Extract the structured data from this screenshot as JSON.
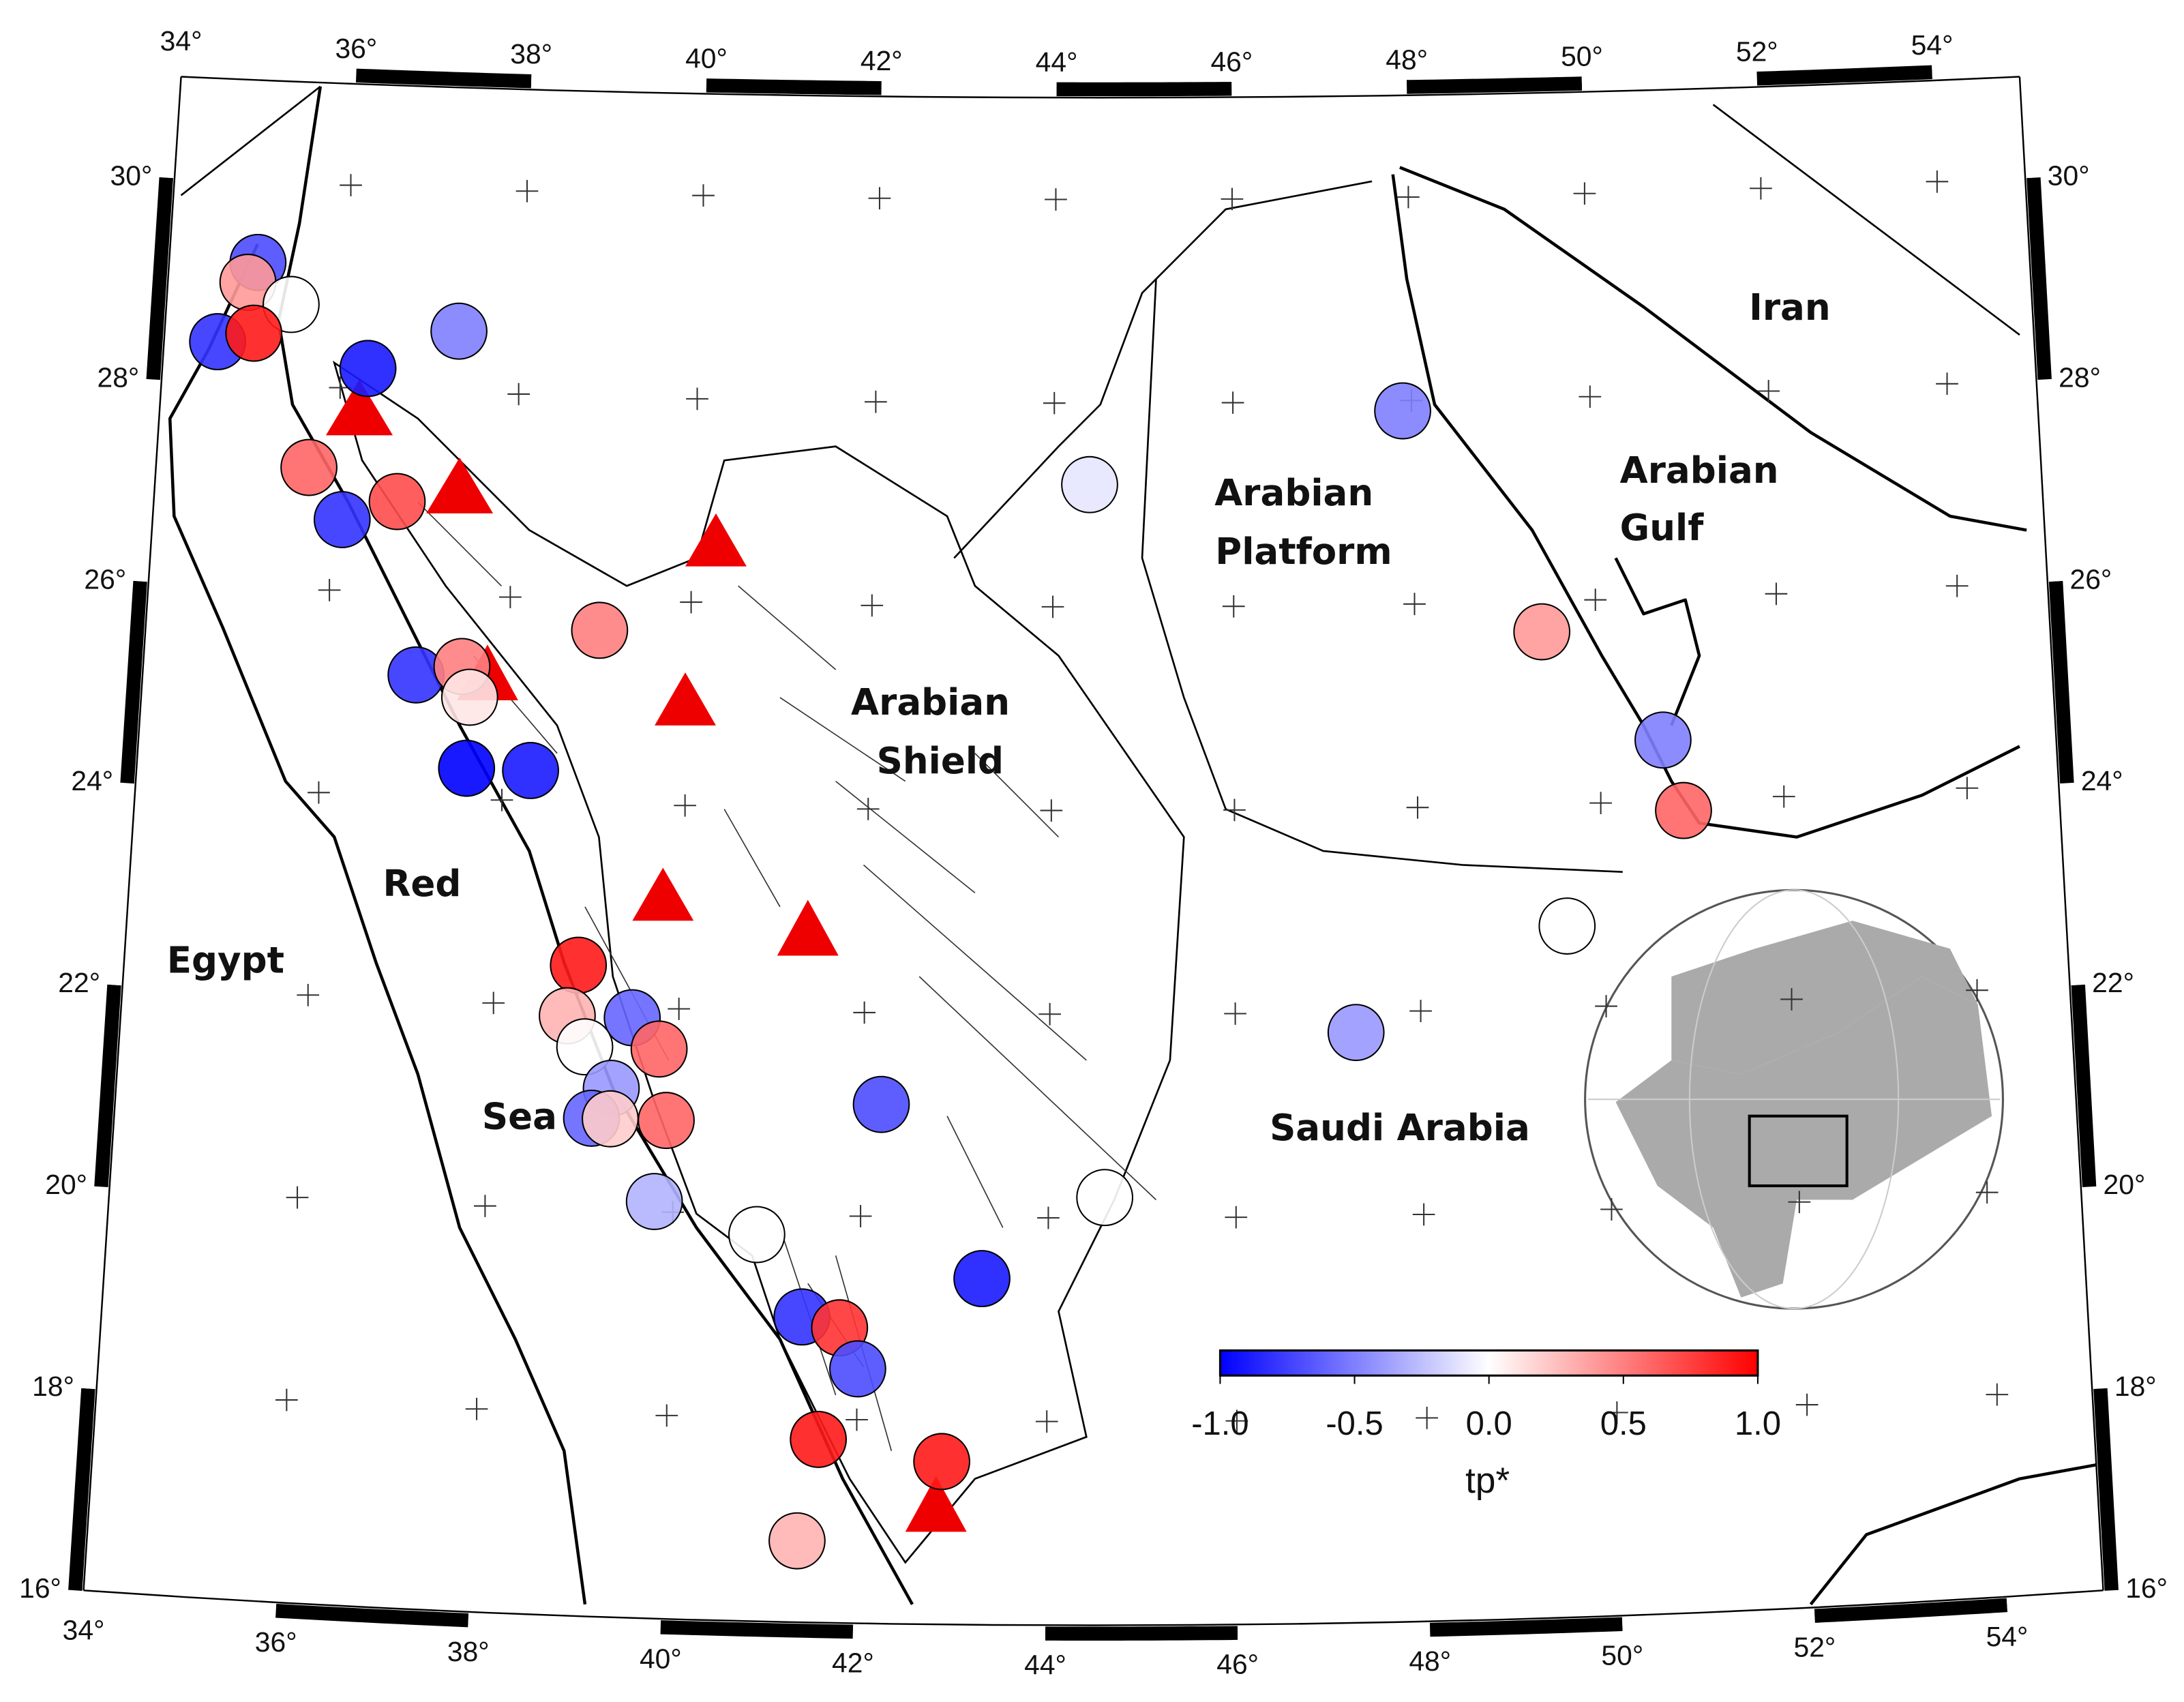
{
  "map": {
    "lon_lim": [
      34,
      55
    ],
    "lat_lim": [
      16,
      31
    ],
    "lon_ticks": [
      {
        "value": 34,
        "label": "34°"
      },
      {
        "value": 36,
        "label": "36°"
      },
      {
        "value": 38,
        "label": "38°"
      },
      {
        "value": 40,
        "label": "40°"
      },
      {
        "value": 42,
        "label": "42°"
      },
      {
        "value": 44,
        "label": "44°"
      },
      {
        "value": 46,
        "label": "46°"
      },
      {
        "value": 48,
        "label": "48°"
      },
      {
        "value": 50,
        "label": "50°"
      },
      {
        "value": 52,
        "label": "52°"
      },
      {
        "value": 54,
        "label": "54°"
      }
    ],
    "lat_ticks": [
      {
        "value": 16,
        "label": "16°"
      },
      {
        "value": 18,
        "label": "18°"
      },
      {
        "value": 20,
        "label": "20°"
      },
      {
        "value": 22,
        "label": "22°"
      },
      {
        "value": 24,
        "label": "24°"
      },
      {
        "value": 26,
        "label": "26°"
      },
      {
        "value": 28,
        "label": "28°"
      },
      {
        "value": 30,
        "label": "30°"
      }
    ]
  },
  "places": [
    "Egypt",
    "Red",
    "Sea",
    "Arabian",
    "Shield",
    "Arabian",
    "Platform",
    "Arabian",
    "Gulf",
    "Iran",
    "Saudi Arabia"
  ],
  "colorbar": {
    "label": "tp*",
    "vlim": [
      -1,
      1
    ],
    "ticks": [
      {
        "value": -1,
        "label": "-1.0"
      },
      {
        "value": -0.5,
        "label": "-0.5"
      },
      {
        "value": 0,
        "label": "0.0"
      },
      {
        "value": 0.5,
        "label": "0.5"
      },
      {
        "value": 1,
        "label": "1.0"
      }
    ]
  },
  "stations": [
    {
      "lon": 35.0,
      "lat": 29.2,
      "tp": -0.7
    },
    {
      "lon": 34.9,
      "lat": 29.0,
      "tp": 0.4
    },
    {
      "lon": 35.4,
      "lat": 28.8,
      "tp": 0.0
    },
    {
      "lon": 34.6,
      "lat": 28.4,
      "tp": -0.8
    },
    {
      "lon": 35.0,
      "lat": 28.5,
      "tp": 0.9
    },
    {
      "lon": 36.3,
      "lat": 28.2,
      "tp": -0.9
    },
    {
      "lon": 37.3,
      "lat": 28.6,
      "tp": -0.5
    },
    {
      "lon": 35.7,
      "lat": 27.2,
      "tp": 0.6
    },
    {
      "lon": 36.7,
      "lat": 26.9,
      "tp": 0.7
    },
    {
      "lon": 36.1,
      "lat": 26.7,
      "tp": -0.8
    },
    {
      "lon": 39.0,
      "lat": 25.7,
      "tp": 0.5
    },
    {
      "lon": 37.0,
      "lat": 25.2,
      "tp": -0.8
    },
    {
      "lon": 37.5,
      "lat": 25.3,
      "tp": 0.5
    },
    {
      "lon": 37.6,
      "lat": 25.0,
      "tp": 0.1
    },
    {
      "lon": 37.6,
      "lat": 24.3,
      "tp": -1.0
    },
    {
      "lon": 38.3,
      "lat": 24.3,
      "tp": -0.9
    },
    {
      "lon": 38.9,
      "lat": 22.4,
      "tp": 0.9
    },
    {
      "lon": 38.8,
      "lat": 21.9,
      "tp": 0.3
    },
    {
      "lon": 39.5,
      "lat": 21.9,
      "tp": -0.6
    },
    {
      "lon": 39.8,
      "lat": 21.6,
      "tp": 0.6
    },
    {
      "lon": 39.0,
      "lat": 21.6,
      "tp": 0.0
    },
    {
      "lon": 39.3,
      "lat": 21.2,
      "tp": -0.4
    },
    {
      "lon": 39.1,
      "lat": 20.9,
      "tp": -0.6
    },
    {
      "lon": 39.3,
      "lat": 20.9,
      "tp": 0.2
    },
    {
      "lon": 39.9,
      "lat": 20.9,
      "tp": 0.6
    },
    {
      "lon": 39.8,
      "lat": 20.1,
      "tp": -0.3
    },
    {
      "lon": 42.2,
      "lat": 21.1,
      "tp": -0.7
    },
    {
      "lon": 40.9,
      "lat": 19.8,
      "tp": 0.0
    },
    {
      "lon": 44.6,
      "lat": 20.2,
      "tp": 0.0
    },
    {
      "lon": 43.3,
      "lat": 19.4,
      "tp": -0.9
    },
    {
      "lon": 41.4,
      "lat": 19.0,
      "tp": -0.8
    },
    {
      "lon": 41.8,
      "lat": 18.9,
      "tp": 0.8
    },
    {
      "lon": 42.0,
      "lat": 18.5,
      "tp": -0.7
    },
    {
      "lon": 41.6,
      "lat": 17.8,
      "tp": 0.9
    },
    {
      "lon": 42.9,
      "lat": 17.6,
      "tp": 0.9
    },
    {
      "lon": 41.4,
      "lat": 16.8,
      "tp": 0.3
    },
    {
      "lon": 44.4,
      "lat": 27.2,
      "tp": -0.1
    },
    {
      "lon": 47.9,
      "lat": 27.9,
      "tp": -0.5
    },
    {
      "lon": 49.4,
      "lat": 25.7,
      "tp": 0.4
    },
    {
      "lon": 50.7,
      "lat": 24.6,
      "tp": -0.5
    },
    {
      "lon": 50.9,
      "lat": 23.9,
      "tp": 0.6
    },
    {
      "lon": 49.6,
      "lat": 22.8,
      "tp": 0.0
    },
    {
      "lon": 47.3,
      "lat": 21.8,
      "tp": -0.4
    }
  ]
}
